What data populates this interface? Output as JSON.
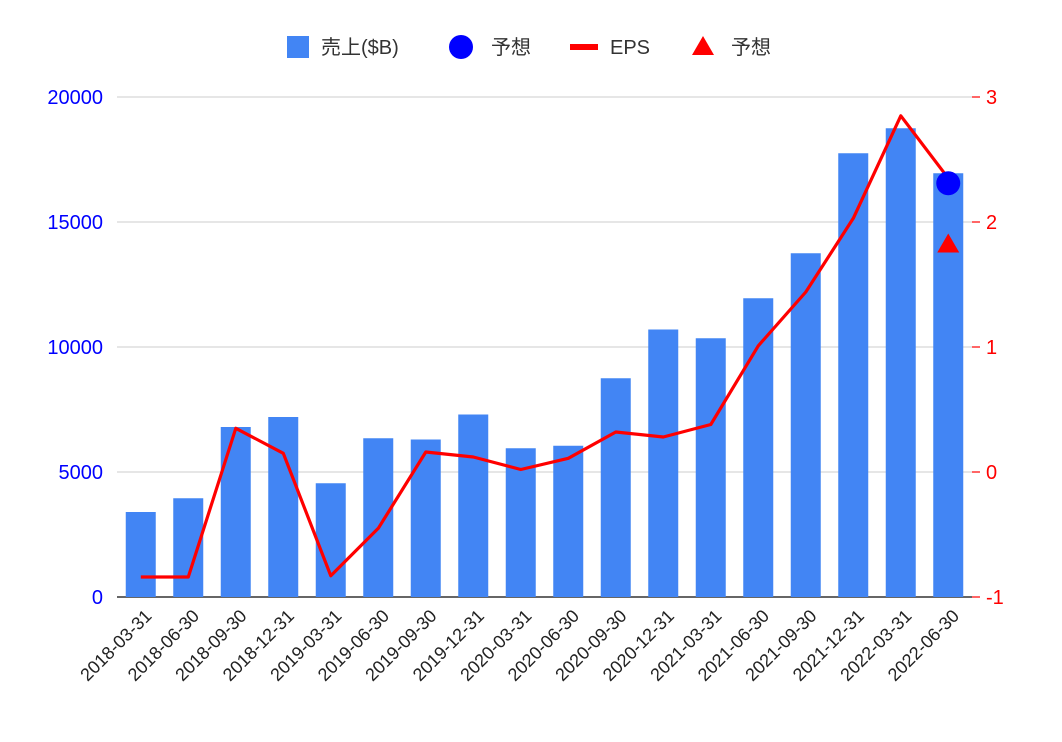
{
  "chart_data": {
    "type": "bar",
    "categories": [
      "2018-03-31",
      "2018-06-30",
      "2018-09-30",
      "2018-12-31",
      "2019-03-31",
      "2019-06-30",
      "2019-09-30",
      "2019-12-31",
      "2020-03-31",
      "2020-06-30",
      "2020-09-30",
      "2020-12-31",
      "2021-03-31",
      "2021-06-30",
      "2021-09-30",
      "2021-12-31",
      "2022-03-31",
      "2022-06-30"
    ],
    "series": [
      {
        "name": "売上($B)",
        "type": "bar",
        "axis": "left",
        "color": "#4285f4",
        "values": [
          3400,
          3950,
          6800,
          7200,
          4550,
          6350,
          6300,
          7300,
          5950,
          6050,
          8750,
          10700,
          10350,
          11950,
          13750,
          17750,
          18750,
          16950
        ]
      },
      {
        "name": "予想",
        "type": "scatter",
        "axis": "left",
        "marker": "circle",
        "color": "#0000ff",
        "points": [
          {
            "category": "2022-06-30",
            "value": 16550
          }
        ]
      },
      {
        "name": "EPS",
        "type": "line",
        "axis": "right",
        "color": "#ff0000",
        "values": [
          -0.84,
          -0.84,
          0.35,
          0.15,
          -0.83,
          -0.45,
          0.16,
          0.12,
          0.02,
          0.11,
          0.32,
          0.28,
          0.38,
          1.01,
          1.44,
          2.03,
          2.85,
          2.35
        ]
      },
      {
        "name": "予想",
        "type": "scatter",
        "axis": "right",
        "marker": "triangle",
        "color": "#ff0000",
        "points": [
          {
            "category": "2022-06-30",
            "value": 1.82
          }
        ]
      }
    ],
    "y_left": {
      "ticks": [
        "0",
        "5000",
        "10000",
        "15000",
        "20000"
      ],
      "range": [
        0,
        20000
      ],
      "color": "#0000ff"
    },
    "y_right": {
      "ticks": [
        "-1",
        "0",
        "1",
        "2",
        "3"
      ],
      "range": [
        -1,
        3
      ],
      "color": "#ff0000"
    },
    "grid": true,
    "legend_position": "top"
  }
}
